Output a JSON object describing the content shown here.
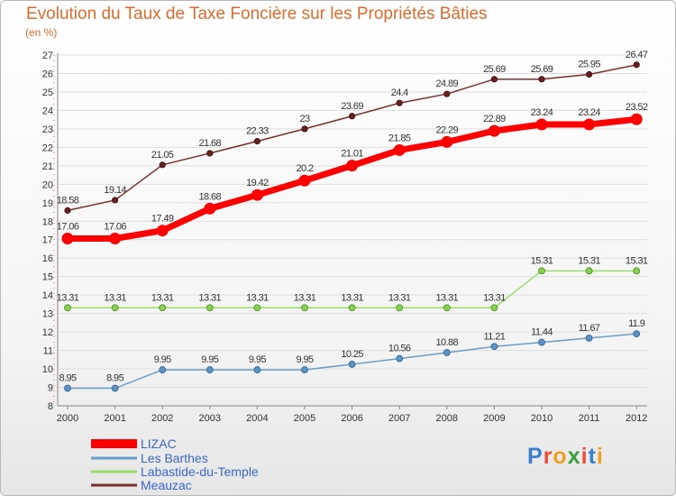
{
  "header": {
    "title": "Evolution du Taux de Taxe Foncière sur les Propriétés Bâties",
    "unit": "(en %)"
  },
  "logo": {
    "text": "Proxiti"
  },
  "chart_data": {
    "type": "line",
    "title": "Evolution du Taux de Taxe Foncière sur les Propriétés Bâties",
    "ylabel": "(en %)",
    "xlabel": "",
    "x": [
      "2000",
      "2001",
      "2002",
      "2003",
      "2004",
      "2005",
      "2006",
      "2007",
      "2008",
      "2009",
      "2010",
      "2011",
      "2012"
    ],
    "y_ticks": [
      "8",
      "9",
      "10",
      "11",
      "12",
      "13",
      "14",
      "15",
      "16",
      "17",
      "18",
      "19",
      "20",
      "21",
      "22",
      "23",
      "24",
      "25",
      "26",
      "27"
    ],
    "ylim": [
      8,
      27
    ],
    "grid": "horizontal",
    "legend_position": "bottom-left",
    "series": [
      {
        "name": "LIZAC",
        "color": "#ff0000",
        "values": [
          17.06,
          17.06,
          17.49,
          18.68,
          19.42,
          20.2,
          21.01,
          21.85,
          22.29,
          22.89,
          23.24,
          23.24,
          23.52
        ],
        "labels": [
          "17.06",
          "17.06",
          "17.49",
          "18.68",
          "19.42",
          "20.2",
          "21.01",
          "21.85",
          "22.29",
          "22.89",
          "23.24",
          "23.24",
          "23.52"
        ]
      },
      {
        "name": "Les Barthes",
        "color": "#6a9ec9",
        "values": [
          8.95,
          8.95,
          9.95,
          9.95,
          9.95,
          9.95,
          10.25,
          10.56,
          10.88,
          11.21,
          11.44,
          11.67,
          11.9
        ],
        "labels": [
          "8.95",
          "8.95",
          "9.95",
          "9.95",
          "9.95",
          "9.95",
          "10.25",
          "10.56",
          "10.88",
          "11.21",
          "11.44",
          "11.67",
          "11.9"
        ]
      },
      {
        "name": "Labastide-du-Temple",
        "color": "#99dd66",
        "values": [
          13.31,
          13.31,
          13.31,
          13.31,
          13.31,
          13.31,
          13.31,
          13.31,
          13.31,
          13.31,
          15.31,
          15.31,
          15.31
        ],
        "labels": [
          "13.31",
          "13.31",
          "13.31",
          "13.31",
          "13.31",
          "13.31",
          "13.31",
          "13.31",
          "13.31",
          "13.31",
          "15.31",
          "15.31",
          "15.31"
        ]
      },
      {
        "name": "Meauzac",
        "color": "#7a2e2e",
        "values": [
          18.58,
          19.14,
          21.05,
          21.68,
          22.33,
          23,
          23.69,
          24.4,
          24.89,
          25.69,
          25.69,
          25.95,
          26.47
        ],
        "labels": [
          "18.58",
          "19.14",
          "21.05",
          "21.68",
          "22.33",
          "23",
          "23.69",
          "24.4",
          "24.89",
          "25.69",
          "25.69",
          "25.95",
          "26.47"
        ]
      }
    ]
  }
}
